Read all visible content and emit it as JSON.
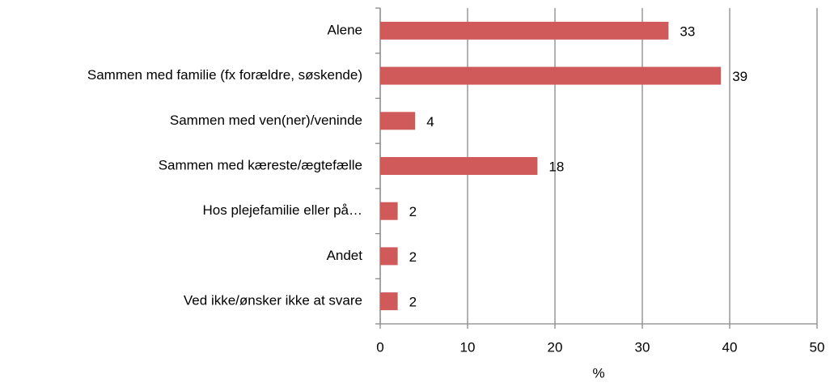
{
  "chart_data": {
    "type": "barh",
    "categories": [
      "Alene",
      "Sammen med familie (fx forældre, søskende)",
      "Sammen med ven(ner)/veninde",
      "Sammen med kæreste/ægtefælle",
      "Hos plejefamilie eller på…",
      "Andet",
      "Ved ikke/ønsker ikke at svare"
    ],
    "values": [
      33,
      39,
      4,
      18,
      2,
      2,
      2
    ],
    "color": "#d05a5a",
    "xlabel": "%",
    "xlim": [
      0,
      50
    ],
    "xticks": [
      0,
      10,
      20,
      30,
      40,
      50
    ],
    "grid": true
  }
}
